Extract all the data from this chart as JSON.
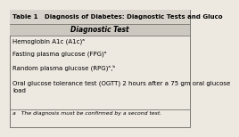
{
  "title": "Table 1   Diagnosis of Diabetes: Diagnostic Tests and Gluco",
  "header": "Diagnostic Test",
  "rows": [
    "Hemoglobin A1c (A1c)ᵃ",
    "Fasting plasma glucose (FPG)ᵃ",
    "Random plasma glucose (RPG)ᵃ,ᵇ",
    "Oral glucose tolerance test (OGTT) 2 hours after a 75 gm oral glucose\nload"
  ],
  "footnote": "a   The diagnosis must be confirmed by a second test.",
  "bg_color": "#ede8e0",
  "header_bg": "#ccc8c0",
  "border_color": "#777770",
  "title_bg": "#d8d3ca",
  "title_fontsize": 5.0,
  "header_fontsize": 5.5,
  "row_fontsize": 5.0,
  "footnote_fontsize": 4.4
}
